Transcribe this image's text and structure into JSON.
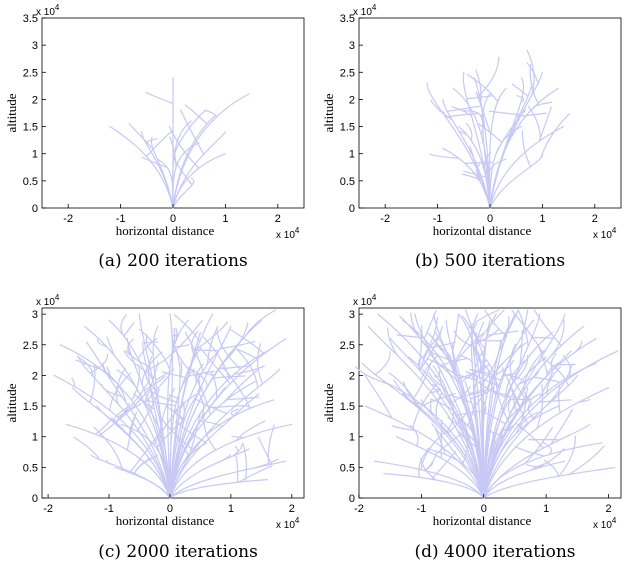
{
  "captions": {
    "a": "(a)  200 iterations",
    "b": "(b)  500 iterations",
    "c": "(c)  2000 iterations",
    "d": "(d)  4000 iterations"
  },
  "colors": {
    "branches": "#c7c9f4",
    "axes": "#000000",
    "background": "#ffffff"
  },
  "chart_data": [
    {
      "type": "line",
      "panel": "a",
      "xlabel": "horizontal distance",
      "ylabel": "altitude",
      "x_exponent_label": "x 10",
      "x_exponent_power": "4",
      "y_exponent_label": "x 10",
      "y_exponent_power": "4",
      "xlim": [
        -2.5,
        2.5
      ],
      "ylim": [
        0,
        3.5
      ],
      "xticks": [
        "-2",
        "-1",
        "0",
        "1",
        "2"
      ],
      "yticks": [
        "0",
        "0.5",
        "1",
        "1.5",
        "2",
        "2.5",
        "3",
        "3.5"
      ],
      "iterations": 200,
      "branch_tips": [
        [
          0.0,
          2.4
        ],
        [
          -1.2,
          1.5
        ],
        [
          -0.6,
          1.4
        ],
        [
          -0.4,
          1.3
        ],
        [
          0.35,
          1.6
        ],
        [
          0.8,
          1.7
        ],
        [
          1.0,
          1.4
        ],
        [
          1.45,
          2.1
        ],
        [
          1.0,
          1.0
        ],
        [
          0.35,
          0.55
        ],
        [
          -0.3,
          0.9
        ],
        [
          0.5,
          1.2
        ]
      ]
    },
    {
      "type": "line",
      "panel": "b",
      "xlabel": "horizontal distance",
      "ylabel": "altitude",
      "x_exponent_label": "x 10",
      "x_exponent_power": "4",
      "y_exponent_label": "x 10",
      "y_exponent_power": "4",
      "xlim": [
        -2.5,
        2.5
      ],
      "ylim": [
        0,
        3.5
      ],
      "xticks": [
        "-2",
        "-1",
        "0",
        "1",
        "2"
      ],
      "yticks": [
        "0",
        "0.5",
        "1",
        "1.5",
        "2",
        "2.5",
        "3",
        "3.5"
      ],
      "iterations": 500,
      "branch_tips": [
        [
          -1.2,
          2.3
        ],
        [
          -0.9,
          2.0
        ],
        [
          -0.7,
          2.2
        ],
        [
          -0.5,
          2.5
        ],
        [
          -0.3,
          2.4
        ],
        [
          0.0,
          2.1
        ],
        [
          0.3,
          2.2
        ],
        [
          0.6,
          2.4
        ],
        [
          0.8,
          2.3
        ],
        [
          1.0,
          2.5
        ],
        [
          1.3,
          2.2
        ],
        [
          1.4,
          1.5
        ],
        [
          -0.6,
          1.5
        ],
        [
          0.6,
          1.5
        ],
        [
          1.0,
          1.0
        ],
        [
          -0.9,
          1.1
        ],
        [
          -0.2,
          0.8
        ],
        [
          0.3,
          0.9
        ]
      ]
    },
    {
      "type": "line",
      "panel": "c",
      "xlabel": "horizontal distance",
      "ylabel": "altitude",
      "x_exponent_label": "x 10",
      "x_exponent_power": "4",
      "y_exponent_label": "x 10",
      "y_exponent_power": "4",
      "xlim": [
        -2.1,
        2.2
      ],
      "ylim": [
        0,
        3.1
      ],
      "xticks": [
        "-2",
        "-1",
        "0",
        "1",
        "2"
      ],
      "yticks": [
        "0",
        "0.5",
        "1",
        "1.5",
        "2",
        "2.5",
        "3"
      ],
      "iterations": 2000,
      "branch_tips": [
        [
          -1.9,
          2.0
        ],
        [
          -1.8,
          2.5
        ],
        [
          -1.6,
          1.8
        ],
        [
          -1.4,
          2.8
        ],
        [
          -1.3,
          0.7
        ],
        [
          -1.1,
          2.2
        ],
        [
          -1.0,
          2.9
        ],
        [
          -0.8,
          1.2
        ],
        [
          -0.7,
          2.6
        ],
        [
          -0.5,
          3.0
        ],
        [
          -0.3,
          2.3
        ],
        [
          -0.2,
          2.8
        ],
        [
          0.0,
          3.0
        ],
        [
          0.1,
          2.4
        ],
        [
          0.3,
          2.9
        ],
        [
          0.4,
          2.1
        ],
        [
          0.5,
          2.7
        ],
        [
          0.7,
          3.0
        ],
        [
          0.8,
          2.4
        ],
        [
          1.0,
          2.8
        ],
        [
          1.1,
          1.4
        ],
        [
          1.2,
          2.6
        ],
        [
          1.3,
          0.8
        ],
        [
          1.5,
          2.9
        ],
        [
          1.6,
          2.4
        ],
        [
          1.7,
          1.6
        ],
        [
          1.8,
          2.1
        ],
        [
          1.9,
          0.6
        ],
        [
          2.0,
          1.2
        ],
        [
          1.9,
          2.6
        ],
        [
          -1.7,
          1.2
        ],
        [
          -1.2,
          1.5
        ],
        [
          0.9,
          1.8
        ],
        [
          1.4,
          1.9
        ],
        [
          -0.6,
          1.7
        ],
        [
          0.2,
          1.6
        ],
        [
          -1.5,
          2.3
        ],
        [
          0.6,
          0.9
        ],
        [
          -0.9,
          0.5
        ],
        [
          1.6,
          0.3
        ]
      ]
    },
    {
      "type": "line",
      "panel": "d",
      "xlabel": "horizontal distance",
      "ylabel": "altitude",
      "x_exponent_label": "x 10",
      "x_exponent_power": "4",
      "y_exponent_label": "x 10",
      "y_exponent_power": "4",
      "xlim": [
        -2.0,
        2.2
      ],
      "ylim": [
        0,
        3.1
      ],
      "xticks": [
        "-2",
        "-1",
        "0",
        "1",
        "2"
      ],
      "yticks": [
        "0",
        "0.5",
        "1",
        "1.5",
        "2",
        "2.5",
        "3"
      ],
      "iterations": 4000,
      "branch_tips": [
        [
          -1.95,
          2.2
        ],
        [
          -1.9,
          1.5
        ],
        [
          -1.85,
          2.8
        ],
        [
          -1.75,
          0.6
        ],
        [
          -1.7,
          3.0
        ],
        [
          -1.6,
          1.9
        ],
        [
          -1.5,
          2.6
        ],
        [
          -1.4,
          1.0
        ],
        [
          -1.3,
          2.9
        ],
        [
          -1.2,
          2.3
        ],
        [
          -1.1,
          3.0
        ],
        [
          -1.0,
          1.6
        ],
        [
          -0.9,
          2.7
        ],
        [
          -0.8,
          3.0
        ],
        [
          -0.7,
          2.1
        ],
        [
          -0.6,
          2.9
        ],
        [
          -0.5,
          2.5
        ],
        [
          -0.4,
          3.0
        ],
        [
          -0.3,
          1.9
        ],
        [
          -0.2,
          2.8
        ],
        [
          -0.1,
          3.0
        ],
        [
          0.0,
          2.4
        ],
        [
          0.1,
          2.9
        ],
        [
          0.2,
          3.0
        ],
        [
          0.3,
          2.2
        ],
        [
          0.4,
          2.8
        ],
        [
          0.5,
          3.0
        ],
        [
          0.6,
          2.5
        ],
        [
          0.7,
          1.8
        ],
        [
          0.8,
          2.9
        ],
        [
          0.9,
          3.0
        ],
        [
          1.0,
          2.3
        ],
        [
          1.1,
          2.7
        ],
        [
          1.2,
          1.5
        ],
        [
          1.3,
          3.0
        ],
        [
          1.4,
          2.4
        ],
        [
          1.5,
          2.0
        ],
        [
          1.6,
          2.8
        ],
        [
          1.7,
          1.2
        ],
        [
          1.8,
          2.6
        ],
        [
          1.9,
          0.9
        ],
        [
          2.0,
          1.8
        ],
        [
          2.1,
          0.5
        ],
        [
          2.15,
          2.4
        ],
        [
          -1.6,
          0.4
        ],
        [
          -0.9,
          0.8
        ],
        [
          1.3,
          0.6
        ],
        [
          0.5,
          1.2
        ],
        [
          -0.4,
          1.3
        ],
        [
          1.8,
          2.2
        ],
        [
          -1.3,
          1.7
        ],
        [
          0.9,
          1.7
        ]
      ]
    }
  ]
}
